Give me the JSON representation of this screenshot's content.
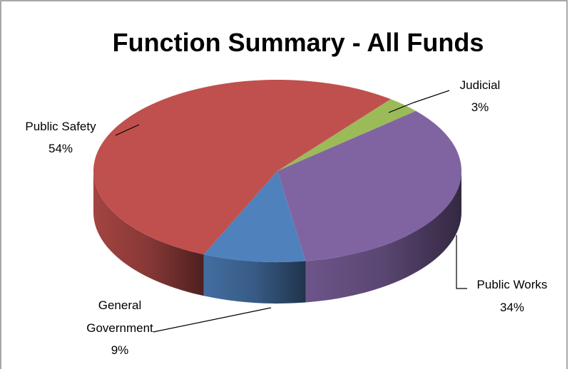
{
  "chart_data": {
    "type": "pie",
    "title": "Function Summary - All Funds",
    "categories": [
      "Judicial",
      "Public Works",
      "General Government",
      "Public Safety"
    ],
    "values": [
      3,
      34,
      9,
      54
    ],
    "value_labels": [
      "3%",
      "34%",
      "9%",
      "54%"
    ],
    "colors": [
      "#9bbb59",
      "#8064a2",
      "#4f81bd",
      "#c0504d"
    ],
    "three_d": true
  }
}
